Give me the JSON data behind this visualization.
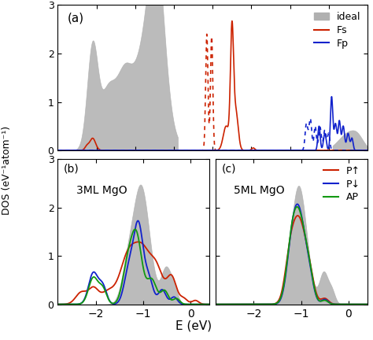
{
  "panel_a": {
    "title": "(a)",
    "xlim": [
      -10,
      6
    ],
    "ylim": [
      0,
      3
    ],
    "yticks": [
      0,
      1,
      2,
      3
    ],
    "xticks": [
      -8,
      -6,
      -4,
      -2,
      0,
      2,
      4,
      6
    ],
    "legend": [
      "ideal",
      "Fs",
      "Fp"
    ]
  },
  "panel_b": {
    "title": "3ML MgO",
    "xlim": [
      -2.8,
      0.4
    ],
    "ylim": [
      0,
      3
    ],
    "yticks": [
      0,
      1,
      2,
      3
    ],
    "xticks": [
      -2,
      -1,
      0
    ],
    "label": "(b)"
  },
  "panel_c": {
    "title": "5ML MgO",
    "xlim": [
      -2.8,
      0.4
    ],
    "ylim": [
      0,
      3
    ],
    "yticks": [
      0,
      1,
      2,
      3
    ],
    "xticks": [
      -2,
      -1,
      0
    ],
    "label": "(c)",
    "legend": [
      "P↑",
      "P↓",
      "AP"
    ]
  },
  "colors": {
    "gray": "#b0b0b0",
    "red": "#cc2200",
    "blue": "#1122cc",
    "green": "#119911"
  },
  "ylabel": "DOS (eV⁻¹atom⁻¹)",
  "xlabel": "E (eV)"
}
